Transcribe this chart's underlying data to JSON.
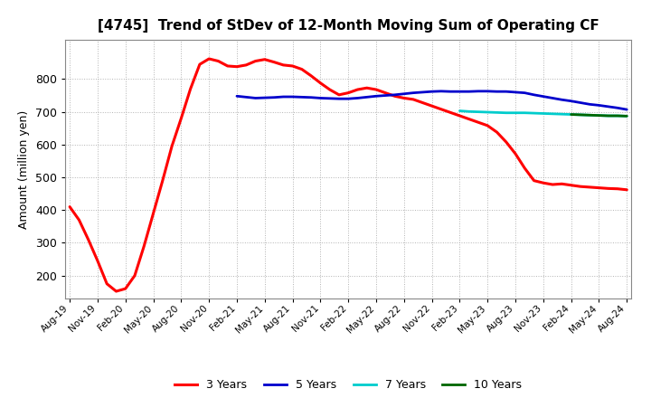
{
  "title": "[4745]  Trend of StDev of 12-Month Moving Sum of Operating CF",
  "ylabel": "Amount (million yen)",
  "background_color": "#ffffff",
  "grid_color": "#aaaaaa",
  "ylim": [
    130,
    920
  ],
  "yticks": [
    200,
    300,
    400,
    500,
    600,
    700,
    800
  ],
  "series": {
    "3years": {
      "color": "#ff0000",
      "label": "3 Years",
      "x_indices": [
        0,
        1,
        2,
        3,
        4,
        5,
        6,
        7,
        8,
        9,
        10,
        11,
        12,
        13,
        14,
        15,
        16,
        17,
        18,
        19,
        20,
        21,
        22,
        23,
        24,
        25,
        26,
        27,
        28,
        29,
        30,
        31,
        32,
        33,
        34,
        35,
        36,
        37,
        38,
        39,
        40,
        41,
        42,
        43,
        44,
        45,
        46,
        47,
        48,
        49,
        50,
        51,
        52,
        53,
        54,
        55,
        56,
        57,
        58,
        59,
        60
      ],
      "values": [
        410,
        370,
        310,
        245,
        175,
        152,
        160,
        200,
        290,
        390,
        490,
        595,
        680,
        770,
        845,
        862,
        855,
        840,
        838,
        843,
        855,
        860,
        852,
        843,
        840,
        830,
        810,
        788,
        768,
        752,
        758,
        768,
        773,
        768,
        758,
        748,
        742,
        738,
        728,
        718,
        708,
        698,
        688,
        678,
        668,
        658,
        638,
        608,
        572,
        528,
        490,
        483,
        478,
        480,
        476,
        472,
        470,
        468,
        466,
        465,
        462
      ]
    },
    "5years": {
      "color": "#0000cc",
      "label": "5 Years",
      "x_indices": [
        18,
        19,
        20,
        21,
        22,
        23,
        24,
        25,
        26,
        27,
        28,
        29,
        30,
        31,
        32,
        33,
        34,
        35,
        36,
        37,
        38,
        39,
        40,
        41,
        42,
        43,
        44,
        45,
        46,
        47,
        48,
        49,
        50,
        51,
        52,
        53,
        54,
        55,
        56,
        57,
        58,
        59,
        60
      ],
      "values": [
        748,
        745,
        742,
        743,
        744,
        746,
        746,
        745,
        744,
        742,
        741,
        740,
        740,
        742,
        745,
        748,
        750,
        752,
        755,
        758,
        760,
        762,
        763,
        762,
        762,
        762,
        763,
        763,
        762,
        762,
        760,
        758,
        752,
        747,
        742,
        737,
        733,
        728,
        723,
        720,
        716,
        712,
        707
      ]
    },
    "7years": {
      "color": "#00cccc",
      "label": "7 Years",
      "x_indices": [
        42,
        43,
        44,
        45,
        46,
        47,
        48,
        49,
        50,
        51,
        52,
        53,
        54,
        55,
        56,
        57,
        58,
        59,
        60
      ],
      "values": [
        703,
        701,
        700,
        699,
        698,
        697,
        697,
        697,
        696,
        695,
        694,
        693,
        692,
        691,
        690,
        689,
        688,
        688,
        687
      ]
    },
    "10years": {
      "color": "#006600",
      "label": "10 Years",
      "x_indices": [
        54,
        55,
        56,
        57,
        58,
        59,
        60
      ],
      "values": [
        692,
        691,
        690,
        689,
        688,
        688,
        687
      ]
    }
  },
  "x_labels": [
    "Aug-19",
    "Nov-19",
    "Feb-20",
    "May-20",
    "Aug-20",
    "Nov-20",
    "Feb-21",
    "May-21",
    "Aug-21",
    "Nov-21",
    "Feb-22",
    "May-22",
    "Aug-22",
    "Nov-22",
    "Feb-23",
    "May-23",
    "Aug-23",
    "Nov-23",
    "Feb-24",
    "May-24",
    "Aug-24"
  ],
  "x_label_indices": [
    0,
    3,
    6,
    9,
    12,
    15,
    18,
    21,
    24,
    27,
    30,
    33,
    36,
    39,
    42,
    45,
    48,
    51,
    54,
    57,
    60
  ],
  "legend_labels": [
    "3 Years",
    "5 Years",
    "7 Years",
    "10 Years"
  ],
  "legend_colors": [
    "#ff0000",
    "#0000cc",
    "#00cccc",
    "#006600"
  ]
}
